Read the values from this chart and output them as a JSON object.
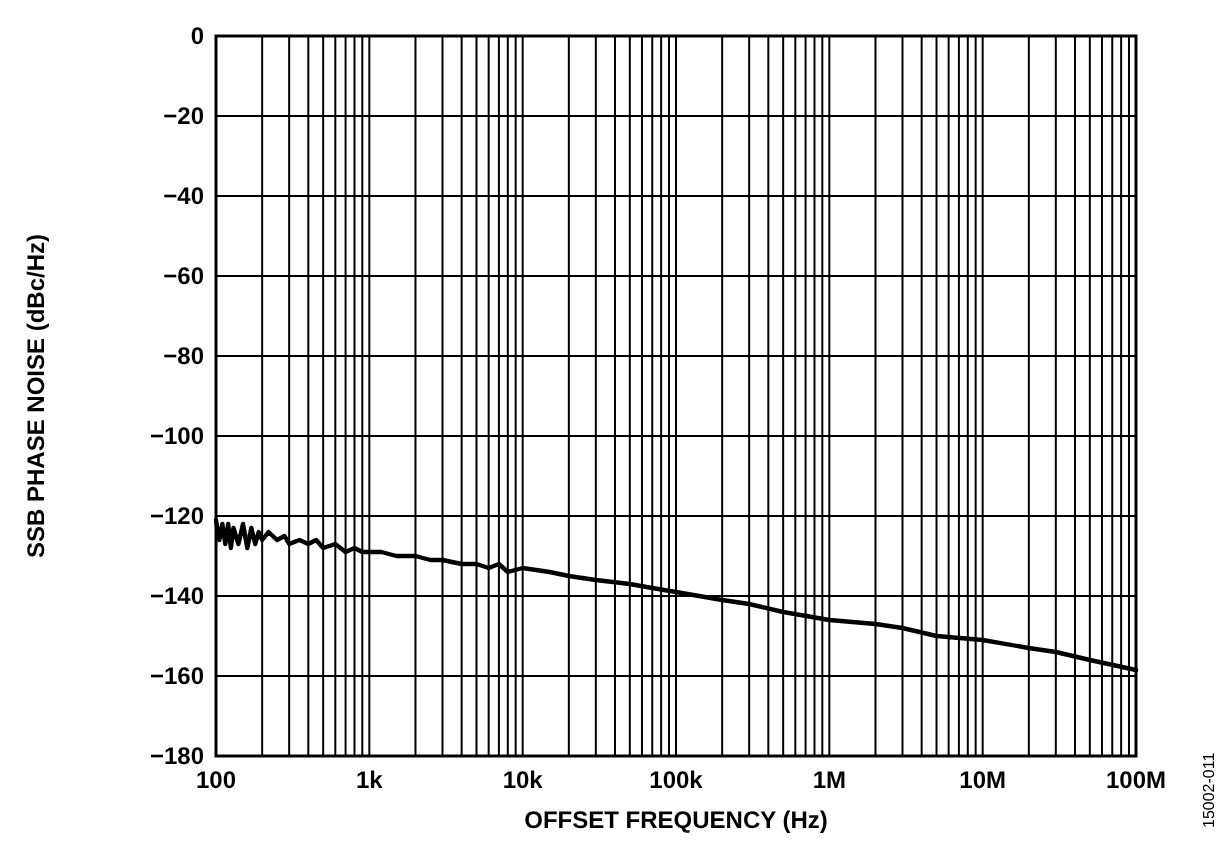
{
  "chart_data": {
    "type": "line",
    "xlabel": "OFFSET FREQUENCY (Hz)",
    "ylabel": "SSB PHASE NOISE (dBc/Hz)",
    "log": "x",
    "grid": true,
    "line_style": "solid",
    "marker": "none",
    "xlim": [
      100,
      100000000
    ],
    "ylim": [
      -180,
      0
    ],
    "xticks": [
      100,
      {
        "value": 200,
        "label": null
      },
      {
        "value": 300,
        "label": null
      },
      {
        "value": 400,
        "label": null
      },
      {
        "value": 500,
        "label": null
      },
      {
        "value": 600,
        "label": null
      },
      {
        "value": 700,
        "label": null
      },
      {
        "value": 800,
        "label": null
      },
      {
        "value": 900,
        "label": null
      },
      {
        "value": 1000,
        "label": "1k"
      },
      {
        "value": 2000,
        "label": null
      },
      {
        "value": 3000,
        "label": null
      },
      {
        "value": 4000,
        "label": null
      },
      {
        "value": 5000,
        "label": null
      },
      {
        "value": 6000,
        "label": null
      },
      {
        "value": 7000,
        "label": null
      },
      {
        "value": 8000,
        "label": null
      },
      {
        "value": 9000,
        "label": null
      },
      {
        "value": 10000,
        "label": "10k"
      },
      {
        "value": 20000,
        "label": null
      },
      {
        "value": 30000,
        "label": null
      },
      {
        "value": 40000,
        "label": null
      },
      {
        "value": 50000,
        "label": null
      },
      {
        "value": 60000,
        "label": null
      },
      {
        "value": 70000,
        "label": null
      },
      {
        "value": 80000,
        "label": null
      },
      {
        "value": 90000,
        "label": null
      },
      {
        "value": 100000,
        "label": "100k"
      },
      {
        "value": 200000,
        "label": null
      },
      {
        "value": 300000,
        "label": null
      },
      {
        "value": 400000,
        "label": null
      },
      {
        "value": 500000,
        "label": null
      },
      {
        "value": 600000,
        "label": null
      },
      {
        "value": 700000,
        "label": null
      },
      {
        "value": 800000,
        "label": null
      },
      {
        "value": 900000,
        "label": null
      },
      {
        "value": 1000000,
        "label": "1M"
      },
      {
        "value": 2000000,
        "label": null
      },
      {
        "value": 3000000,
        "label": null
      },
      {
        "value": 4000000,
        "label": null
      },
      {
        "value": 5000000,
        "label": null
      },
      {
        "value": 6000000,
        "label": null
      },
      {
        "value": 7000000,
        "label": null
      },
      {
        "value": 8000000,
        "label": null
      },
      {
        "value": 9000000,
        "label": null
      },
      {
        "value": 10000000,
        "label": "10M"
      },
      {
        "value": 20000000,
        "label": null
      },
      {
        "value": 30000000,
        "label": null
      },
      {
        "value": 40000000,
        "label": null
      },
      {
        "value": 50000000,
        "label": null
      },
      {
        "value": 60000000,
        "label": null
      },
      {
        "value": 70000000,
        "label": null
      },
      {
        "value": 80000000,
        "label": null
      },
      {
        "value": 90000000,
        "label": null
      },
      {
        "value": 100000000,
        "label": "100M"
      }
    ],
    "yticks": [
      0,
      {
        "value": -20,
        "label": "−20"
      },
      {
        "value": -40,
        "label": "−40"
      },
      {
        "value": -60,
        "label": "−60"
      },
      {
        "value": -80,
        "label": "−80"
      },
      {
        "value": -100,
        "label": "−100"
      },
      {
        "value": -120,
        "label": "−120"
      },
      {
        "value": -140,
        "label": "−140"
      },
      {
        "value": -160,
        "label": "−160"
      },
      {
        "value": -180,
        "label": "−180"
      }
    ],
    "annotations": [
      "15002-011"
    ],
    "series": [
      {
        "color": "#000000",
        "x": [
          100,
          105,
          110,
          115,
          120,
          125,
          130,
          140,
          150,
          160,
          170,
          180,
          190,
          200,
          220,
          250,
          280,
          300,
          350,
          400,
          450,
          500,
          600,
          700,
          800,
          900,
          1000,
          1200,
          1500,
          2000,
          2500,
          3000,
          4000,
          5000,
          6000,
          7000,
          8000,
          10000,
          15000,
          20000,
          30000,
          50000,
          70000,
          100000,
          200000,
          300000,
          500000,
          1000000,
          2000000,
          3000000,
          5000000,
          10000000,
          20000000,
          30000000,
          50000000,
          100000000
        ],
        "values": [
          -121,
          -126,
          -122,
          -127,
          -122,
          -128,
          -123,
          -127,
          -122,
          -128,
          -123,
          -127,
          -124,
          -126,
          -124,
          -126,
          -125,
          -127,
          -126,
          -127,
          -126,
          -128,
          -127,
          -129,
          -128,
          -129,
          -129,
          -129,
          -130,
          -130,
          -131,
          -131,
          -132,
          -132,
          -133,
          -132,
          -134,
          -133,
          -134,
          -135,
          -136,
          -137,
          -138,
          -139,
          -141,
          -142,
          -144,
          -146,
          -147,
          -148,
          -150,
          -151,
          -153,
          -154,
          -156,
          -158.5
        ]
      }
    ]
  }
}
